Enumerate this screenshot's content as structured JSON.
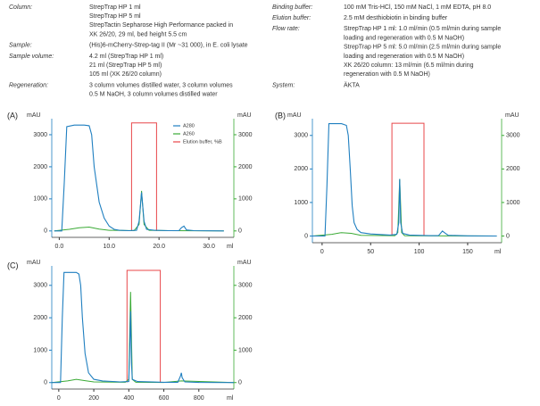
{
  "conditions": {
    "left": [
      {
        "label": "Column:",
        "lines": [
          "StrepTrap HP 1 ml",
          "StrepTrap HP 5 ml",
          "StrepTactin Sepharose High Performance packed in",
          "XK 26/20, 29 ml, bed height 5.5 cm"
        ]
      },
      {
        "label": "Sample:",
        "lines": [
          "(His)6-mCherry-Strep-tag II (Mr ~31 000), in E. coli lysate"
        ]
      },
      {
        "label": "Sample volume:",
        "lines": [
          "4.2 ml (StrepTrap HP 1 ml)",
          "21 ml (StrepTrap HP 5 ml)",
          "105 ml (XK 26/20 column)"
        ]
      },
      {
        "label": "Regeneration:",
        "lines": [
          "3 column volumes distilled water, 3 column volumes",
          "0.5 M NaOH, 3 column volumes distilled water"
        ]
      }
    ],
    "right": [
      {
        "label": "Binding buffer:",
        "lines": [
          "100 mM Tris-HCl, 150 mM NaCl, 1 mM EDTA, pH 8.0"
        ]
      },
      {
        "label": "Elution buffer:",
        "lines": [
          "2.5 mM desthiobiotin in binding buffer"
        ]
      },
      {
        "label": "Flow rate:",
        "lines": [
          "StrepTrap HP 1 ml: 1.0 ml/min (0.5 ml/min during sample",
          "loading and regeneration with 0.5 M NaOH)",
          "StrepTrap HP 5 ml: 5.0 ml/min (2.5 ml/min during sample",
          "loading and regeneration with 0.5 M NaOH)",
          "XK 26/20 column: 13 ml/min (6.5 ml/min during",
          "regeneration with 0.5 M NaOH)"
        ]
      },
      {
        "label": "System:",
        "lines": [
          "ÄKTA"
        ]
      }
    ]
  },
  "chart_data": [
    {
      "type": "line",
      "panel": "(A)",
      "ylabel": "mAU",
      "y2label": "mAU",
      "xlabel": "ml",
      "legend": "top-right",
      "xlim": [
        -1.5,
        35
      ],
      "xticks": [
        {
          "value": 0,
          "label": "0.0"
        },
        {
          "value": 10,
          "label": "10.0"
        },
        {
          "value": 20,
          "label": "20.0"
        },
        {
          "value": 30,
          "label": "30.0"
        }
      ],
      "ylim": [
        -200,
        3500
      ],
      "yticks": [
        0,
        1000,
        2000,
        3000
      ],
      "y2lim": [
        -200,
        3500
      ],
      "y2ticks": [
        0,
        1000,
        2000,
        3000
      ],
      "y3lim": [
        -6,
        104
      ],
      "series": [
        {
          "name": "A280",
          "color": "#1f7fc0",
          "x": [
            -1,
            0.5,
            1,
            1.5,
            3,
            5,
            6,
            6.5,
            7,
            8,
            9,
            10,
            11,
            12,
            14,
            15.5,
            16,
            16.5,
            17,
            17.5,
            19,
            22,
            24,
            24.5,
            25,
            25.5,
            27,
            33
          ],
          "values": [
            0,
            0,
            1500,
            3250,
            3300,
            3300,
            3280,
            3000,
            2000,
            900,
            400,
            150,
            50,
            20,
            10,
            20,
            300,
            1200,
            300,
            50,
            20,
            10,
            10,
            100,
            150,
            30,
            10,
            0
          ]
        },
        {
          "name": "A260",
          "color": "#3aaa35",
          "axis": "y2",
          "x": [
            -1,
            2,
            4,
            6,
            8,
            10,
            15,
            16,
            16.5,
            17,
            18,
            22,
            33
          ],
          "values": [
            0,
            50,
            100,
            120,
            60,
            20,
            10,
            200,
            1250,
            200,
            20,
            10,
            0
          ]
        },
        {
          "name": "Elution buffer, %B",
          "color": "#e8474a",
          "axis": "y3",
          "x": [
            14.5,
            14.5,
            19.5,
            19.5
          ],
          "values": [
            0,
            100,
            100,
            0
          ]
        }
      ]
    },
    {
      "type": "line",
      "panel": "(B)",
      "ylabel": "mAU",
      "y2label": "mAU",
      "xlabel": "ml",
      "legend": false,
      "xlim": [
        -10,
        185
      ],
      "xticks": [
        0,
        50,
        100,
        150
      ],
      "ylim": [
        -200,
        3500
      ],
      "yticks": [
        0,
        1000,
        2000,
        3000
      ],
      "y2lim": [
        -200,
        3500
      ],
      "y2ticks": [
        0,
        1000,
        2000,
        3000
      ],
      "y3lim": [
        -6,
        104
      ],
      "series": [
        {
          "name": "A280",
          "color": "#1f7fc0",
          "x": [
            -10,
            3,
            5,
            7,
            12,
            20,
            25,
            27,
            29,
            31,
            33,
            36,
            40,
            50,
            70,
            77,
            79,
            80,
            81,
            83,
            90,
            110,
            120,
            124,
            126,
            130,
            150,
            180
          ],
          "values": [
            0,
            0,
            1500,
            3350,
            3350,
            3350,
            3300,
            3000,
            2000,
            900,
            400,
            200,
            100,
            60,
            30,
            50,
            400,
            1700,
            400,
            80,
            30,
            10,
            10,
            150,
            100,
            20,
            5,
            0
          ]
        },
        {
          "name": "A260",
          "color": "#3aaa35",
          "axis": "y2",
          "x": [
            -10,
            10,
            20,
            30,
            40,
            75,
            78,
            80,
            82,
            85,
            100,
            180
          ],
          "values": [
            0,
            50,
            100,
            80,
            20,
            10,
            100,
            1700,
            100,
            10,
            5,
            0
          ]
        },
        {
          "name": "Elution buffer, %B",
          "color": "#e8474a",
          "axis": "y3",
          "x": [
            72,
            72,
            105,
            105
          ],
          "values": [
            0,
            100,
            100,
            0
          ]
        }
      ]
    },
    {
      "type": "line",
      "panel": "(C)",
      "ylabel": "mAU",
      "y2label": "mAU",
      "xlabel": "ml",
      "legend": false,
      "xlim": [
        -40,
        1000
      ],
      "xticks": [
        0,
        200,
        400,
        600,
        800
      ],
      "ylim": [
        -200,
        3600
      ],
      "yticks": [
        0,
        1000,
        2000,
        3000
      ],
      "y2lim": [
        -200,
        3600
      ],
      "y2ticks": [
        0,
        1000,
        2000,
        3000
      ],
      "y3lim": [
        -6,
        104
      ],
      "series": [
        {
          "name": "A280",
          "color": "#1f7fc0",
          "x": [
            -40,
            10,
            20,
            30,
            60,
            100,
            115,
            125,
            135,
            150,
            170,
            200,
            250,
            350,
            400,
            405,
            410,
            415,
            420,
            450,
            600,
            680,
            695,
            700,
            705,
            720,
            800,
            1000
          ],
          "values": [
            0,
            0,
            2000,
            3400,
            3400,
            3400,
            3350,
            3000,
            2000,
            900,
            300,
            100,
            50,
            20,
            30,
            1000,
            2200,
            600,
            100,
            30,
            10,
            10,
            200,
            300,
            150,
            20,
            5,
            0
          ]
        },
        {
          "name": "A260",
          "color": "#3aaa35",
          "axis": "y2",
          "x": [
            -40,
            50,
            100,
            150,
            200,
            380,
            400,
            410,
            420,
            440,
            600,
            700,
            1000
          ],
          "values": [
            0,
            50,
            100,
            60,
            20,
            10,
            100,
            2800,
            100,
            10,
            5,
            50,
            0
          ]
        },
        {
          "name": "Elution buffer, %B",
          "color": "#e8474a",
          "axis": "y3",
          "x": [
            390,
            390,
            580,
            580
          ],
          "values": [
            0,
            100,
            100,
            0
          ]
        }
      ]
    }
  ]
}
